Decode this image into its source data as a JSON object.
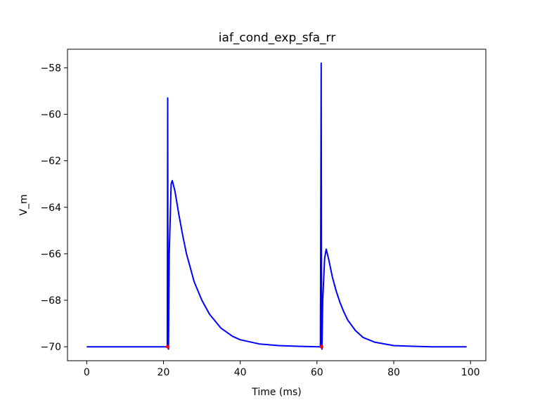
{
  "chart_data": {
    "type": "line",
    "title": "iaf_cond_exp_sfa_rr",
    "xlabel": "Time (ms)",
    "ylabel": "V_m",
    "xlim": [
      -5,
      104
    ],
    "ylim": [
      -70.6,
      -57.2
    ],
    "xticks": [
      0,
      20,
      40,
      60,
      80,
      100
    ],
    "xtick_labels": [
      "0",
      "20",
      "40",
      "60",
      "80",
      "100"
    ],
    "yticks": [
      -58,
      -60,
      -62,
      -64,
      -66,
      -68,
      -70
    ],
    "ytick_labels": [
      "−58",
      "−60",
      "−62",
      "−64",
      "−66",
      "−68",
      "−70"
    ],
    "grid": false,
    "series": [
      {
        "color": "#0000ff",
        "x": [
          0,
          20.8,
          21.0,
          21.1,
          21.2,
          21.3,
          21.5,
          22.0,
          22.3,
          23,
          24,
          25,
          26,
          27,
          28,
          30,
          32,
          35,
          38,
          40,
          45,
          50,
          55,
          60.5,
          60.9,
          61.1,
          61.2,
          61.3,
          61.5,
          62.0,
          62.4,
          63,
          64,
          65,
          66,
          67,
          68,
          70,
          72,
          75,
          80,
          85,
          90,
          95,
          99
        ],
        "y": [
          -70.0,
          -70.0,
          -70.0,
          -59.3,
          -70.0,
          -70.1,
          -66.0,
          -63.0,
          -62.85,
          -63.3,
          -64.3,
          -65.2,
          -66.0,
          -66.6,
          -67.2,
          -68.0,
          -68.6,
          -69.2,
          -69.55,
          -69.7,
          -69.88,
          -69.95,
          -69.98,
          -70.0,
          -70.0,
          -57.8,
          -70.0,
          -70.1,
          -68.0,
          -66.2,
          -65.8,
          -66.2,
          -67.0,
          -67.6,
          -68.1,
          -68.5,
          -68.85,
          -69.3,
          -69.6,
          -69.8,
          -69.95,
          -69.98,
          -70.0,
          -70.0,
          -70.0
        ]
      }
    ],
    "markers": {
      "color": "#ff0000",
      "points": [
        [
          21.1,
          -70.0
        ],
        [
          61.2,
          -70.0
        ]
      ]
    }
  }
}
